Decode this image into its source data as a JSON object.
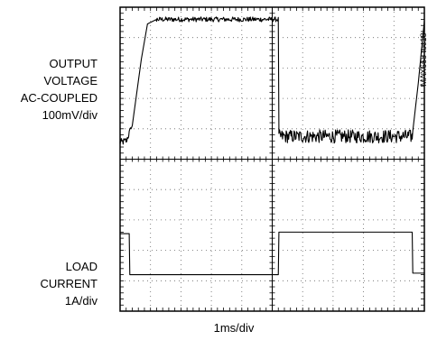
{
  "chart_data": {
    "type": "line",
    "title": "",
    "tag": "MAX668 toc18",
    "x_scale": "1ms/div",
    "x_divisions": 10,
    "y_divisions": 10,
    "time_unit": "div",
    "x_range": [
      0,
      10
    ],
    "grid": true,
    "traces": [
      {
        "label_lines": [
          "OUTPUT",
          "VOLTAGE",
          "AC-COUPLED",
          "100mV/div"
        ],
        "y_range_div": [
          0,
          5
        ],
        "points": [
          {
            "x": 0.0,
            "y": 0.55
          },
          {
            "x": 0.2,
            "y": 0.6
          },
          {
            "x": 0.4,
            "y": 1.1
          },
          {
            "x": 0.7,
            "y": 3.3
          },
          {
            "x": 0.9,
            "y": 4.45
          },
          {
            "x": 1.2,
            "y": 4.6
          },
          {
            "x": 5.2,
            "y": 4.6
          },
          {
            "x": 5.22,
            "y": 0.75
          },
          {
            "x": 9.6,
            "y": 0.75
          },
          {
            "x": 9.8,
            "y": 2.5
          },
          {
            "x": 10.0,
            "y": 4.55
          }
        ],
        "noise": [
          {
            "x_start": 0.0,
            "x_end": 0.35,
            "amplitude": 0.12
          },
          {
            "x_start": 1.2,
            "x_end": 5.2,
            "amplitude": 0.08
          },
          {
            "x_start": 5.22,
            "x_end": 9.6,
            "amplitude": 0.22
          }
        ]
      },
      {
        "label_lines": [
          "LOAD",
          "CURRENT",
          "1A/div"
        ],
        "y_range_div": [
          0,
          5
        ],
        "points": [
          {
            "x": 0.0,
            "y": 2.55
          },
          {
            "x": 0.3,
            "y": 2.55
          },
          {
            "x": 0.32,
            "y": 1.2
          },
          {
            "x": 5.2,
            "y": 1.2
          },
          {
            "x": 5.22,
            "y": 2.6
          },
          {
            "x": 9.6,
            "y": 2.6
          },
          {
            "x": 9.62,
            "y": 1.25
          },
          {
            "x": 10.0,
            "y": 1.25
          }
        ],
        "noise": []
      }
    ]
  }
}
